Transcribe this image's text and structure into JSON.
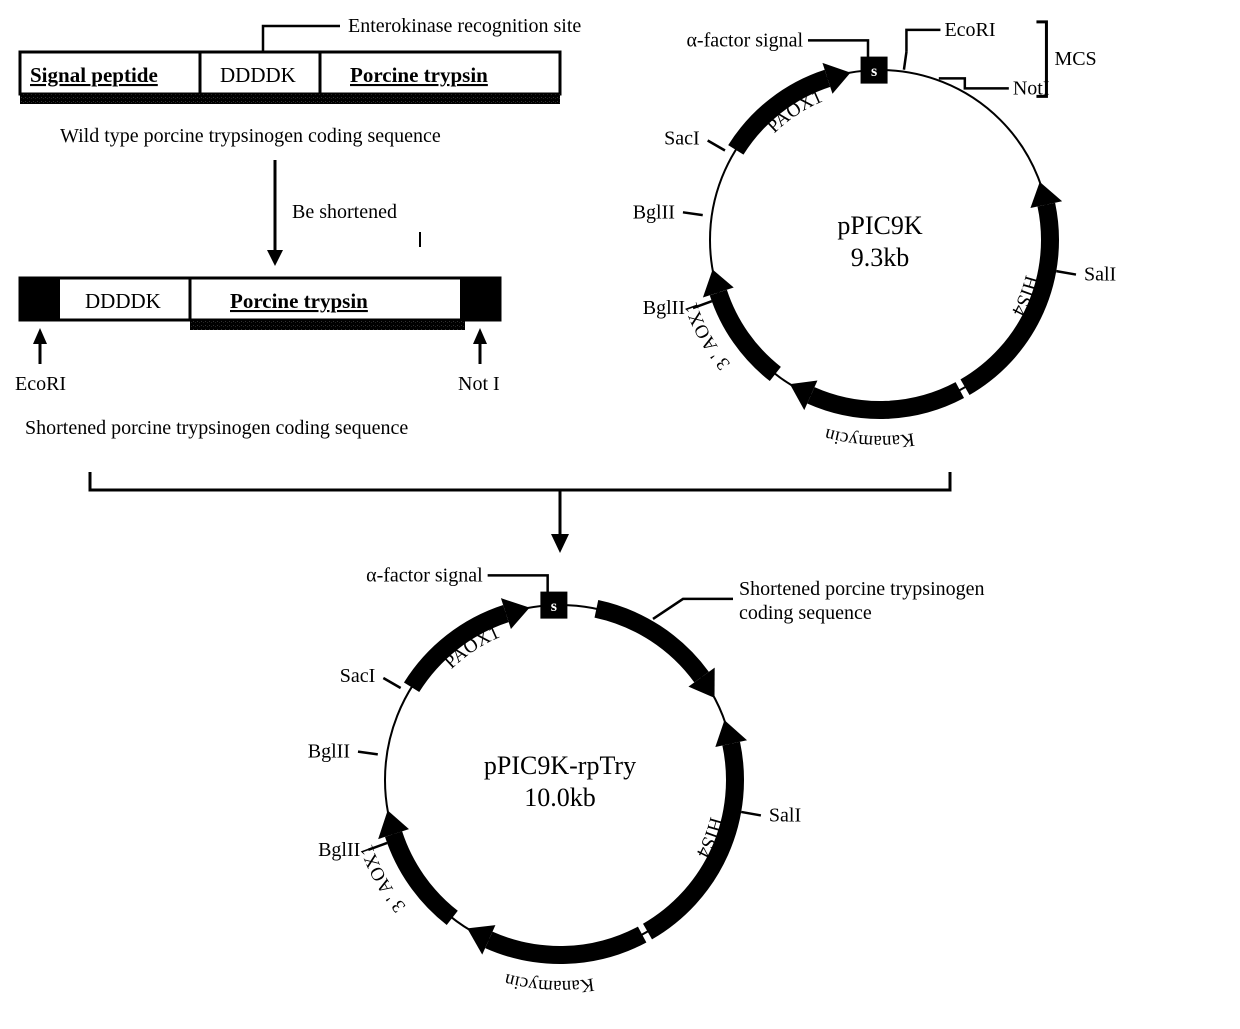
{
  "construct_wt": {
    "caption": "Wild type porcine trypsinogen coding sequence",
    "callout": "Enterokinase recognition site",
    "segments": [
      {
        "label": "Signal peptide",
        "underline": true
      },
      {
        "label": "DDDDK",
        "underline": false
      },
      {
        "label": "Porcine trypsin",
        "underline": true
      }
    ]
  },
  "arrow_shorten_label": "Be shortened",
  "construct_short": {
    "caption": "Shortened porcine trypsinogen coding sequence",
    "segments": [
      {
        "label": "DDDDK"
      },
      {
        "label": "Porcine trypsin"
      }
    ],
    "left_site": "EcoRI",
    "right_site": "Not I"
  },
  "plasmid1": {
    "name": "pPIC9K",
    "size": "9.3kb",
    "alpha_label": "α-factor signal",
    "mcs_label": "MCS",
    "sites": {
      "ecori": "EcoRI",
      "noti": "NotI",
      "sali": "SalI",
      "saci": "SacI",
      "bglii_a": "BglII",
      "bglii_b": "BglII"
    },
    "features": {
      "paox1": "PAOX1",
      "aox1_3": "3 ' AOX1",
      "kan": "Kanamycin",
      "his4": "HIS4"
    },
    "s_box": "s"
  },
  "plasmid2": {
    "name": "pPIC9K-rpTry",
    "size": "10.0kb",
    "alpha_label": "α-factor signal",
    "insert_label": "Shortened porcine trypsinogen\ncoding sequence",
    "sites": {
      "sali": "SalI",
      "saci": "SacI",
      "bglii_a": "BglII",
      "bglii_b": "BglII"
    },
    "features": {
      "paox1": "PAOX1",
      "aox1_3": "3 ' AOX1",
      "kan": "Kanamycin",
      "his4": "HIS4"
    },
    "s_box": "s"
  },
  "style": {
    "stroke": "#000000",
    "fill_dark": "#000000",
    "fill_white": "#ffffff",
    "font_size_label": 20,
    "font_size_box": 21,
    "font_size_center_name": 26,
    "font_size_center_size": 26,
    "border_width": 3,
    "plasmid_ring_width": 2,
    "plasmid_arc_width": 18
  }
}
